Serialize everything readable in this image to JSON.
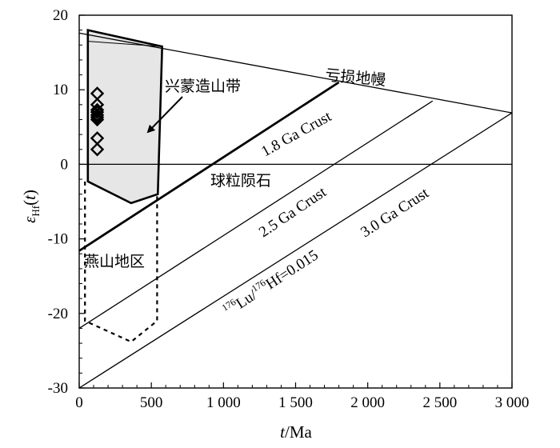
{
  "chart_data": {
    "type": "scatter",
    "xlabel": "t/Ma",
    "ylabel": "εHf(t)",
    "xlim": [
      0,
      3000
    ],
    "ylim": [
      -30,
      20
    ],
    "x_ticks": [
      "0",
      "500",
      "1 000",
      "1 500",
      "2 000",
      "2 500",
      "3 000"
    ],
    "x_tick_values": [
      0,
      500,
      1000,
      1500,
      2000,
      2500,
      3000
    ],
    "y_ticks": [
      "20",
      "10",
      "0",
      "-10",
      "-20",
      "-30"
    ],
    "y_tick_values": [
      20,
      10,
      0,
      -10,
      -20,
      -30
    ],
    "grid": false,
    "series": [
      {
        "kind": "markers",
        "marker": "diamond",
        "points": [
          [
            125,
            9.5
          ],
          [
            125,
            8.0
          ],
          [
            125,
            7.3
          ],
          [
            125,
            7.0
          ],
          [
            125,
            6.6
          ],
          [
            125,
            6.3
          ],
          [
            125,
            6.0
          ],
          [
            125,
            3.5
          ],
          [
            125,
            2.0
          ]
        ]
      }
    ],
    "reference_lines": [
      {
        "label": "亏损地幔",
        "points": [
          [
            0,
            17.6
          ],
          [
            3000,
            6.9
          ]
        ],
        "weight": "thin"
      },
      {
        "label": "1.8 Ga Crust",
        "points": [
          [
            0,
            -11.6
          ],
          [
            1800,
            11.0
          ]
        ],
        "weight": "bold"
      },
      {
        "label": "2.5 Ga Crust",
        "points": [
          [
            0,
            -22.0
          ],
          [
            2450,
            8.5
          ]
        ],
        "weight": "thin"
      },
      {
        "label": "3.0 Ga Crust",
        "points": [
          [
            0,
            -30.0
          ],
          [
            3000,
            6.9
          ]
        ],
        "weight": "thin"
      },
      {
        "label": "球粒陨石",
        "points": [
          [
            0,
            0
          ],
          [
            3000,
            0
          ]
        ],
        "weight": "thin"
      }
    ],
    "regions": [
      {
        "label": "兴蒙造山带",
        "style": "filled",
        "fill": "#e6e6e6",
        "points": [
          [
            60,
            18
          ],
          [
            575,
            15.8
          ],
          [
            545,
            -4
          ],
          [
            360,
            -5.2
          ],
          [
            60,
            -2.3
          ]
        ],
        "inner_line": [
          [
            60,
            16.5
          ],
          [
            575,
            15.8
          ]
        ]
      },
      {
        "label": "燕山地区",
        "style": "dotted",
        "points": [
          [
            40,
            -2.3
          ],
          [
            40,
            -21
          ],
          [
            360,
            -23.8
          ],
          [
            540,
            -21
          ],
          [
            540,
            -4
          ]
        ]
      }
    ],
    "annotations": {
      "lu_hf_label": "176Lu/176Hf=0.015"
    }
  }
}
